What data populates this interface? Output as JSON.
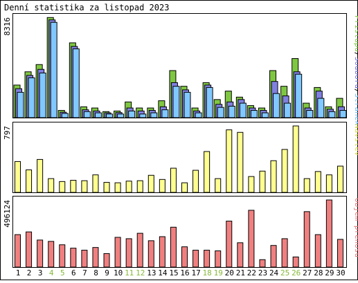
{
  "chart_data": {
    "title": "Denní statistika za listopad 2023",
    "type": "bar",
    "categories": [
      "1",
      "2",
      "3",
      "4",
      "5",
      "6",
      "7",
      "8",
      "9",
      "10",
      "11",
      "12",
      "13",
      "14",
      "15",
      "16",
      "17",
      "18",
      "19",
      "20",
      "21",
      "22",
      "23",
      "24",
      "25",
      "26",
      "27",
      "28",
      "29",
      "30"
    ],
    "weekend_days": [
      "4",
      "5",
      "11",
      "12",
      "18",
      "19",
      "25",
      "26"
    ],
    "colors": {
      "text": "#000000",
      "weekend": "#86b83a",
      "hits": "#7fc742",
      "files": "#8080e0",
      "pages": "#80c8ff",
      "visits": "#ffff90",
      "volume": "#f08080",
      "legend_hits": "#7fc742",
      "legend_files": "#6f6fd8",
      "legend_pages": "#70b8f0",
      "legend_visits": "#d8d850",
      "legend_volume": "#e07878"
    },
    "panels": [
      {
        "id": "hits-files-pages",
        "max_label": "8316",
        "ylim": [
          0,
          8316
        ],
        "legend": [
          "Přístupů",
          "/",
          "Souborů",
          "/",
          "Stránek"
        ],
        "series": [
          {
            "name": "Přístupů",
            "values": [
              2700,
              3800,
              4400,
              8300,
              600,
              6200,
              900,
              800,
              500,
              550,
              1300,
              800,
              800,
              1400,
              3900,
              2600,
              800,
              2900,
              1500,
              2200,
              1700,
              1000,
              800,
              3900,
              2600,
              4900,
              1200,
              2500,
              900,
              1600
            ]
          },
          {
            "name": "Souborů",
            "values": [
              2400,
              3500,
              4000,
              8100,
              450,
              5900,
              650,
              550,
              400,
              420,
              800,
              550,
              600,
              900,
              2900,
              2300,
              550,
              2700,
              1100,
              1300,
              1500,
              800,
              600,
              3000,
              1800,
              3800,
              800,
              2200,
              700,
              900
            ]
          },
          {
            "name": "Stránek",
            "values": [
              2100,
              3300,
              3700,
              7900,
              350,
              5700,
              500,
              400,
              300,
              300,
              550,
              300,
              400,
              650,
              2600,
              2100,
              400,
              2500,
              850,
              950,
              1200,
              600,
              400,
              2000,
              1200,
              3600,
              600,
              1600,
              500,
              600
            ]
          }
        ]
      },
      {
        "id": "visits",
        "max_label": "797",
        "ylim": [
          0,
          797
        ],
        "legend": [
          "Návštěv"
        ],
        "series": [
          {
            "name": "Návštěv",
            "values": [
              370,
              270,
              395,
              165,
              130,
              145,
              140,
              210,
              120,
              115,
              135,
              140,
              205,
              155,
              290,
              115,
              265,
              490,
              165,
              750,
              720,
              190,
              255,
              380,
              515,
              797,
              165,
              250,
              210,
              315
            ]
          }
        ]
      },
      {
        "id": "volume",
        "max_label": "496124",
        "ylim": [
          0,
          496124
        ],
        "legend": [
          "Objem přenosu"
        ],
        "series": [
          {
            "name": "Objem přenosu",
            "values": [
              240000,
              260000,
              200000,
              190000,
              165000,
              140000,
              125000,
              145000,
              100000,
              220000,
              210000,
              250000,
              195000,
              225000,
              295000,
              150000,
              125000,
              125000,
              120000,
              340000,
              180000,
              420000,
              55000,
              160000,
              210000,
              75000,
              410000,
              240000,
              496124,
              205000
            ]
          }
        ]
      }
    ]
  }
}
